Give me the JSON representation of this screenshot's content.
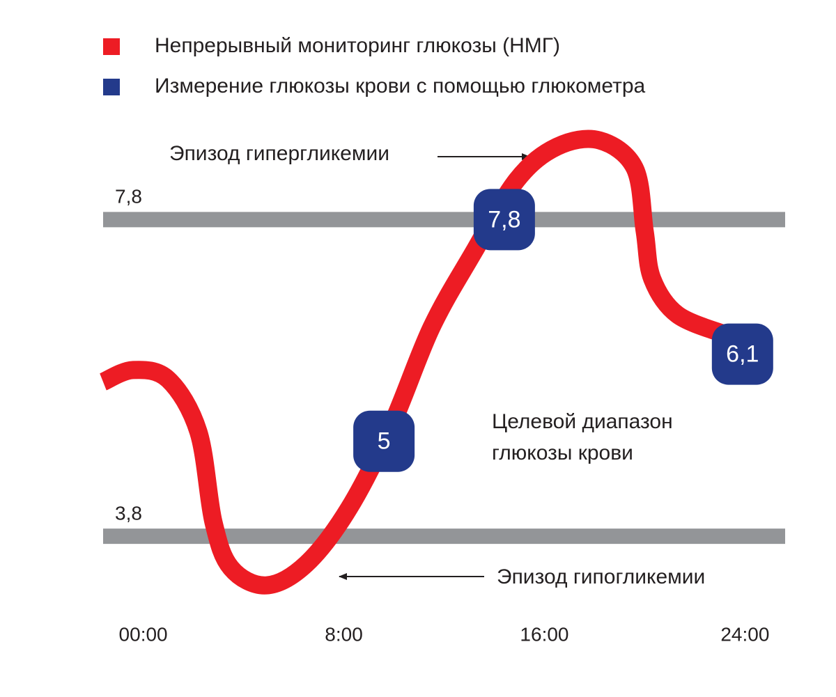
{
  "chart_data": {
    "type": "line",
    "series": [
      {
        "name": "Непрерывный мониторинг глюкозы (НМГ)",
        "color": "#ed1c24",
        "x": [
          -1.6,
          -0.4,
          1.0,
          2.2,
          2.8,
          3.5,
          4.9,
          6.5,
          8.2,
          9.9,
          11.5,
          13.2,
          14.9,
          16.5,
          18.2,
          19.6,
          20.0,
          20.3,
          21.3,
          23.2
        ],
        "values": [
          5.75,
          5.9,
          5.78,
          5.12,
          3.98,
          3.4,
          3.18,
          3.45,
          4.15,
          5.2,
          6.44,
          7.4,
          8.3,
          8.72,
          8.8,
          8.45,
          7.65,
          7.05,
          6.6,
          6.35
        ]
      },
      {
        "name": "Измерение глюкозы крови с помощью глюкометра",
        "color": "#233a8b",
        "type": "scatter",
        "x": [
          9.6,
          14.4,
          23.9
        ],
        "values": [
          5,
          7.8,
          6.1
        ],
        "value_labels": [
          "5",
          "7,8",
          "6,1"
        ]
      }
    ],
    "reference_lines": [
      {
        "value": 7.8,
        "label": "7,8"
      },
      {
        "value": 3.8,
        "label": "3,8"
      }
    ],
    "reference_color": "#939598",
    "annotations": [
      "Эпизод гипергликемии",
      "Эпизод гипогликемии",
      "Целевой диапазон",
      "глюкозы крови"
    ],
    "xlim": [
      -1.6,
      25.6
    ],
    "xticks": [
      {
        "value": 0,
        "label": "00:00"
      },
      {
        "value": 8,
        "label": "8:00"
      },
      {
        "value": 16,
        "label": "16:00"
      },
      {
        "value": 24,
        "label": "24:00"
      }
    ],
    "ylim": [
      2.5,
      9.5
    ],
    "legend": "top-left"
  }
}
